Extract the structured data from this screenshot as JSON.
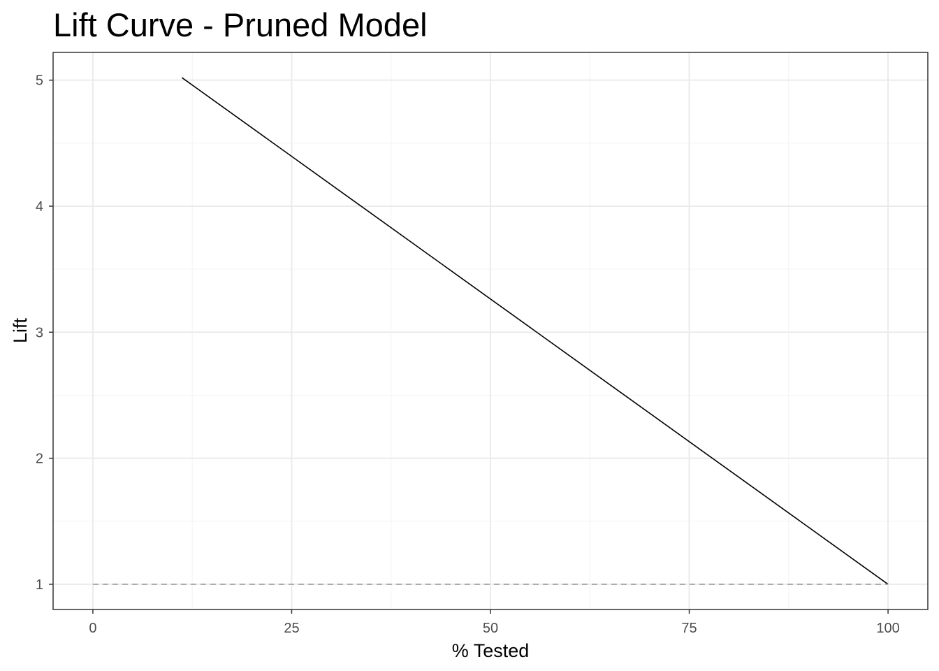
{
  "chart_data": {
    "type": "line",
    "title": "Lift Curve - Pruned Model",
    "xlabel": "% Tested",
    "ylabel": "Lift",
    "xlim": [
      -5,
      105
    ],
    "ylim": [
      0.8,
      5.22
    ],
    "x_ticks": [
      0,
      25,
      50,
      75,
      100
    ],
    "y_ticks": [
      1,
      2,
      3,
      4,
      5
    ],
    "x_minor_ticks": [
      12.5,
      37.5,
      62.5,
      87.5
    ],
    "y_minor_ticks": [
      1.5,
      2.5,
      3.5,
      4.5
    ],
    "grid": true,
    "series": [
      {
        "style": "solid",
        "color": "#000000",
        "x": [
          11.2,
          100
        ],
        "y": [
          5.02,
          1.0
        ]
      },
      {
        "style": "dashed",
        "color": "#999999",
        "x": [
          0,
          100
        ],
        "y": [
          1.0,
          1.0
        ]
      }
    ]
  }
}
